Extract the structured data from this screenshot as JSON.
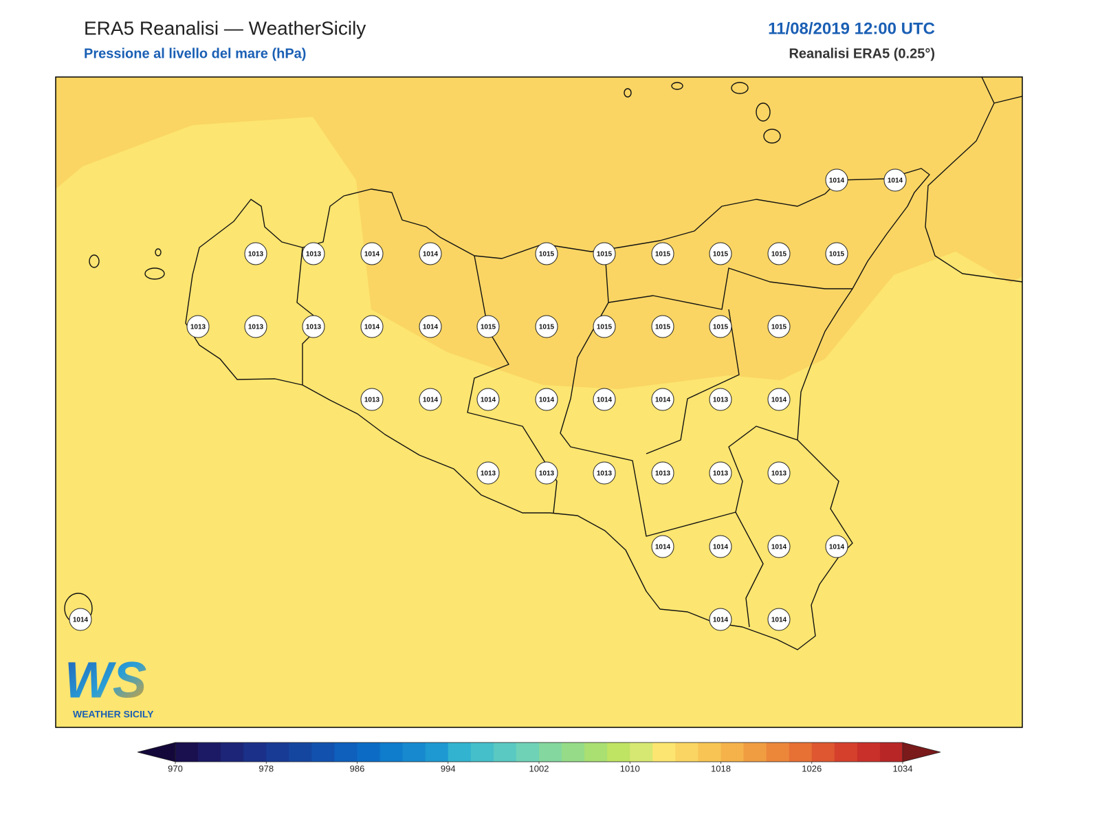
{
  "header": {
    "title": "ERA5 Reanalisi — WeatherSicily",
    "subtitle": "Pressione al livello del mare (hPa)",
    "date": "11/08/2019 12:00 UTC",
    "source": "Reanalisi ERA5 (0.25°)"
  },
  "points": [
    1014,
    1014,
    1013,
    1013,
    1014,
    1014,
    1015,
    1015,
    1015,
    1015,
    1015,
    1015,
    1013,
    1013,
    1013,
    1014,
    1014,
    1015,
    1015,
    1015,
    1015,
    1015,
    1015,
    1013,
    1014,
    1014,
    1014,
    1014,
    1014,
    1013,
    1014,
    1013,
    1013,
    1013,
    1013,
    1013,
    1013,
    1014,
    1014,
    1014,
    1014,
    1014,
    1014,
    1014
  ],
  "colorbar": {
    "range": [
      970,
      1034
    ],
    "ticks": [
      970,
      978,
      986,
      994,
      1002,
      1010,
      1018,
      1026,
      1034
    ],
    "under": "#14083a",
    "over": "#7a1a1a",
    "colors": [
      "#1a0f4f",
      "#1c1a65",
      "#1d2578",
      "#1b3189",
      "#183b95",
      "#15469f",
      "#1252ae",
      "#0f5fbc",
      "#0c6cc5",
      "#0f7ccc",
      "#178acf",
      "#1f99d1",
      "#32b3cf",
      "#45bfca",
      "#5ac9c2",
      "#6fd2b6",
      "#84d79e",
      "#96dc88",
      "#aadf72",
      "#bfe363",
      "#d7e872",
      "#fce570",
      "#fad563",
      "#f8c554",
      "#f5b24a",
      "#f09d41",
      "#ec873a",
      "#e77034",
      "#de5730",
      "#d5402c",
      "#c93029",
      "#b92626"
    ]
  },
  "logo": {
    "mark": "WS",
    "text": "WEATHER SICILY"
  }
}
